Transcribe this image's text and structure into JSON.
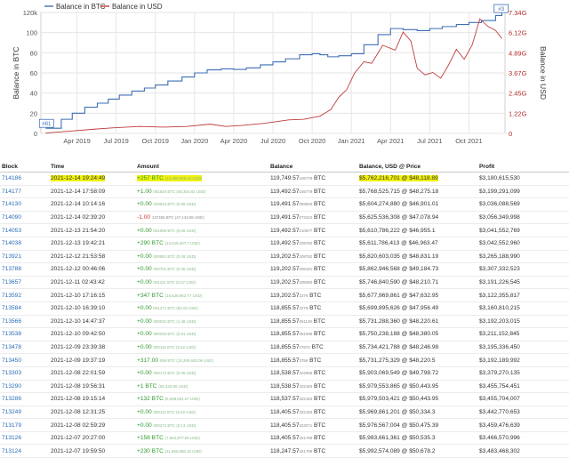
{
  "chart_data": {
    "type": "line",
    "legend": {
      "placement": "top-left",
      "entries": [
        {
          "name": "Balance in BTC",
          "color": "#3f6fb5"
        },
        {
          "name": "Balance in USD",
          "color": "#c03b3b"
        }
      ]
    },
    "ylabel": "Balance in BTC",
    "ylabel_right": "Balance in USD",
    "y_ticks": [
      "0",
      "20",
      "40",
      "60",
      "80",
      "100",
      "120k"
    ],
    "ylim": [
      0,
      120000
    ],
    "y2_ticks": [
      "0",
      "1.22G",
      "2.45G",
      "3.67G",
      "4.89G",
      "6.12G",
      "7.34G"
    ],
    "y2lim": [
      0,
      7340000000
    ],
    "x_ticks": [
      "Apr 2019",
      "Jul 2019",
      "Oct 2019",
      "Jan 2020",
      "Apr 2020",
      "Jul 2020",
      "Oct 2020",
      "Jan 2021",
      "Apr 2021",
      "Jul 2021",
      "Oct 2021"
    ],
    "grid": true,
    "markers": [
      {
        "label": "#81",
        "series": "Balance in BTC",
        "x": 2019.05,
        "y": 5100
      },
      {
        "label": "#3",
        "series": "Balance in BTC",
        "x": 2021.95,
        "y": 119000
      }
    ],
    "series": [
      {
        "name": "Balance in BTC",
        "x": [
          2019.05,
          2019.15,
          2019.22,
          2019.3,
          2019.38,
          2019.45,
          2019.52,
          2019.6,
          2019.68,
          2019.75,
          2019.83,
          2019.92,
          2020.0,
          2020.08,
          2020.17,
          2020.25,
          2020.33,
          2020.42,
          2020.5,
          2020.58,
          2020.67,
          2020.75,
          2020.8,
          2020.85,
          2020.92,
          2021.0,
          2021.08,
          2021.17,
          2021.25,
          2021.33,
          2021.42,
          2021.5,
          2021.58,
          2021.67,
          2021.75,
          2021.83,
          2021.92,
          2021.96
        ],
        "y": [
          5100,
          14000,
          20000,
          26000,
          30000,
          34000,
          38000,
          42000,
          45000,
          48000,
          52000,
          56000,
          60000,
          63000,
          64000,
          63500,
          65000,
          68000,
          71000,
          74000,
          78000,
          79000,
          78000,
          76000,
          77000,
          79000,
          88000,
          98000,
          104000,
          103000,
          102000,
          104000,
          106000,
          108000,
          110000,
          112000,
          117000,
          119700
        ]
      },
      {
        "name": "Balance in USD",
        "x": [
          2019.05,
          2019.2,
          2019.35,
          2019.5,
          2019.65,
          2019.8,
          2019.95,
          2020.1,
          2020.2,
          2020.3,
          2020.45,
          2020.6,
          2020.7,
          2020.8,
          2020.87,
          2020.92,
          2020.97,
          2021.02,
          2021.08,
          2021.13,
          2021.2,
          2021.28,
          2021.33,
          2021.38,
          2021.42,
          2021.47,
          2021.52,
          2021.57,
          2021.62,
          2021.67,
          2021.72,
          2021.77,
          2021.82,
          2021.87,
          2021.92,
          2021.96
        ],
        "y": [
          25000000,
          130000000,
          250000000,
          350000000,
          420000000,
          380000000,
          420000000,
          560000000,
          420000000,
          480000000,
          620000000,
          820000000,
          860000000,
          1050000000,
          1450000000,
          2200000000,
          2650000000,
          3650000000,
          4350000000,
          4250000000,
          5350000000,
          5050000000,
          6150000000,
          5600000000,
          3950000000,
          3550000000,
          3700000000,
          3350000000,
          4150000000,
          5100000000,
          4500000000,
          5350000000,
          6950000000,
          6500000000,
          6250000000,
          5760000000
        ]
      }
    ]
  },
  "table": {
    "headers": [
      "Block",
      "Time",
      "Amount",
      "Balance",
      "Balance, USD @ Price",
      "Profit"
    ],
    "rows": [
      {
        "block": "714186",
        "time": "2021-12-14 19:24:49",
        "amt_main": "+257 BTC",
        "amt_sub": "(12,366,805.24 USD)",
        "amt_sign": "pos",
        "bal_main": "119,749.57",
        "bal_sub": "155779",
        "bal_unit": " BTC",
        "usd": "$5,762,216,701 @ $48,118.89",
        "profit": "$3,180,615,530"
      },
      {
        "block": "714177",
        "time": "2021-12-14 17:58:09",
        "amt_main": "+1.00",
        "amt_sub": "061834 BTC (48,304.82 USD)",
        "amt_sign": "pos",
        "bal_main": "119,492.57",
        "bal_sub": "155779",
        "bal_unit": " BTC",
        "usd": "$5,768,525,715 @ $48,275.18",
        "profit": "$3,199,291,099"
      },
      {
        "block": "714130",
        "time": "2021-12-14 10:14:16",
        "amt_main": "+0.00",
        "amt_sub": "020523 BTC (0.95 USD)",
        "amt_sign": "pos",
        "bal_main": "119,491.57",
        "bal_sub": "093945",
        "bal_unit": " BTC",
        "usd": "$5,604,274,880 @ $46,901.01",
        "profit": "$3,036,088,569"
      },
      {
        "block": "714090",
        "time": "2021-12-14 02:39:20",
        "amt_main": "-1.00",
        "amt_sub": "137455 BTC (47,143.65 USD)",
        "amt_sign": "neg",
        "bal_main": "119,491.57",
        "bal_sub": "073422",
        "bal_unit": " BTC",
        "usd": "$5,625,536,308 @ $47,078.94",
        "profit": "$3,056,349,998"
      },
      {
        "block": "714053",
        "time": "2021-12-13 21:54:20",
        "amt_main": "+0.00",
        "amt_sub": "001095 BTC (0.05 USD)",
        "amt_sign": "pos",
        "bal_main": "119,492.57",
        "bal_sub": "210877",
        "bal_unit": " BTC",
        "usd": "$5,610,786,222 @ $46,955.1",
        "profit": "$3,041,552,769"
      },
      {
        "block": "714038",
        "time": "2021-12-13 19:42:21",
        "amt_main": "+290 BTC",
        "amt_sub": "(13,619,407.7 USD)",
        "amt_sign": "pos",
        "bal_main": "119,492.57",
        "bal_sub": "209782",
        "bal_unit": " BTC",
        "usd": "$5,611,786,413 @ $46,963.47",
        "profit": "$3,042,552,960"
      },
      {
        "block": "713921",
        "time": "2021-12-12 21:53:58",
        "amt_main": "+0.00",
        "amt_sub": "000591 BTC (0.28 USD)",
        "amt_sign": "pos",
        "bal_main": "119,202.57",
        "bal_sub": "209782",
        "bal_unit": " BTC",
        "usd": "$5,820,603,035 @ $48,831.19",
        "profit": "$3,265,188,990"
      },
      {
        "block": "713788",
        "time": "2021-12-12 00:46:06",
        "amt_main": "+0.00",
        "amt_sub": "000701 BTC (0.35 USD)",
        "amt_sign": "pos",
        "bal_main": "119,202.57",
        "bal_sub": "209191",
        "bal_unit": " BTC",
        "usd": "$5,862,946,568 @ $49,184.73",
        "profit": "$3,307,332,523"
      },
      {
        "block": "713657",
        "time": "2021-12-11 02:43:42",
        "amt_main": "+0.00",
        "amt_sub": "001211 BTC (0.57 USD)",
        "amt_sign": "pos",
        "bal_main": "119,202.57",
        "bal_sub": "208490",
        "bal_unit": " BTC",
        "usd": "$5,746,840,590 @ $48,210.71",
        "profit": "$3,191,226,545"
      },
      {
        "block": "713592",
        "time": "2021-12-10 17:16:15",
        "amt_main": "+347 BTC",
        "amt_sub": "(16,528,852.77 USD)",
        "amt_sign": "pos",
        "bal_main": "119,202.57",
        "bal_sub": "2279",
        "bal_unit": " BTC",
        "usd": "$5,677,969,861 @ $47,632.95",
        "profit": "$3,122,355,817"
      },
      {
        "block": "713584",
        "time": "2021-12-10 16:39:10",
        "amt_main": "+0.00",
        "amt_sub": "001271 BTC (60.04 USD)",
        "amt_sign": "pos",
        "bal_main": "118,855.57",
        "bal_sub": "2279",
        "bal_unit": " BTC",
        "usd": "$5,699,895,626 @ $47,956.49",
        "profit": "$3,160,810,215"
      },
      {
        "block": "713566",
        "time": "2021-12-10 14:47:37",
        "amt_main": "+0.00",
        "amt_sub": "000031 BTC (1.48 USD)",
        "amt_sign": "pos",
        "bal_main": "118,855.57",
        "bal_sub": "061129",
        "bal_unit": " BTC",
        "usd": "$5,731,288,360 @ $48,220.61",
        "profit": "$3,192,203,015"
      },
      {
        "block": "713538",
        "time": "2021-12-10 09:42:50",
        "amt_main": "+0.00",
        "amt_sub": "000033 BTC (0.91 USD)",
        "amt_sign": "pos",
        "bal_main": "118,855.57",
        "bal_sub": "061098",
        "bal_unit": " BTC",
        "usd": "$5,750,238,188 @ $48,380.05",
        "profit": "$3,211,152,845"
      },
      {
        "block": "713478",
        "time": "2021-12-09 23:39:38",
        "amt_main": "+0.00",
        "amt_sub": "000115 BTC (5.52 USD)",
        "amt_sign": "pos",
        "bal_main": "118,855.57",
        "bal_sub": "27874",
        "bal_unit": " BTC",
        "usd": "$5,734,421,788 @ $48,246.98",
        "profit": "$3,195,336,450"
      },
      {
        "block": "713450",
        "time": "2021-12-09 19:37:19",
        "amt_main": "+317.00",
        "amt_sub": "058 BTC (15,285,603.06 USD)",
        "amt_sign": "pos",
        "bal_main": "118,855.57",
        "bal_sub": "3759",
        "bal_unit": " BTC",
        "usd": "$5,731,275,329 @ $48,220.5",
        "profit": "$3,192,189,992"
      },
      {
        "block": "713303",
        "time": "2021-12-08 22:01:59",
        "amt_main": "+0.00",
        "amt_sub": "000172 BTC (0.09 USD)",
        "amt_sign": "pos",
        "bal_main": "118,538.57",
        "bal_sub": "322955",
        "bal_unit": " BTC",
        "usd": "$5,903,069,549 @ $49,798.72",
        "profit": "$3,379,270,135"
      },
      {
        "block": "713290",
        "time": "2021-12-08 19:56:31",
        "amt_main": "+1 BTC",
        "amt_sub": "(50,443.95 USD)",
        "amt_sign": "pos",
        "bal_main": "118,538.57",
        "bal_sub": "322183",
        "bal_unit": " BTC",
        "usd": "$5,979,553,865 @ $50,443.95",
        "profit": "$3,455,754,451"
      },
      {
        "block": "713286",
        "time": "2021-12-08 19:15:14",
        "amt_main": "+132 BTC",
        "amt_sub": "(6,658,601.57 USD)",
        "amt_sign": "pos",
        "bal_main": "118,537.57",
        "bal_sub": "322183",
        "bal_unit": " BTC",
        "usd": "$5,979,503,421 @ $50,443.95",
        "profit": "$3,455,704,007"
      },
      {
        "block": "713249",
        "time": "2021-12-08 12:31:25",
        "amt_main": "+0.00",
        "amt_sub": "000112 BTC (5.62 USD)",
        "amt_sign": "pos",
        "bal_main": "118,405.57",
        "bal_sub": "322183",
        "bal_unit": " BTC",
        "usd": "$5,969,861,201 @ $50,334.3",
        "profit": "$3,442,770,653"
      },
      {
        "block": "713179",
        "time": "2021-12-08 02:59:29",
        "amt_main": "+0.00",
        "amt_sub": "000272 BTC (0.13 USD)",
        "amt_sign": "pos",
        "bal_main": "118,405.57",
        "bal_sub": "322071",
        "bal_unit": " BTC",
        "usd": "$5,976,567,004 @ $50,475.39",
        "profit": "$3,459,476,639"
      },
      {
        "block": "713126",
        "time": "2021-12-07 20:27:00",
        "amt_main": "+158 BTC",
        "amt_sub": "(7,964,977.65 USD)",
        "amt_sign": "pos",
        "bal_main": "118,405.57",
        "bal_sub": "321799",
        "bal_unit": " BTC",
        "usd": "$5,983,661,361 @ $50,535.3",
        "profit": "$3,466,570,996"
      },
      {
        "block": "713124",
        "time": "2021-12-07 19:59:50",
        "amt_main": "+230 BTC",
        "amt_sub": "(11,666,868.15 USD)",
        "amt_sign": "pos",
        "bal_main": "118,247.57",
        "bal_sub": "321799",
        "bal_unit": " BTC",
        "usd": "$5,992,574,089 @ $50,678.2",
        "profit": "$3,483,468,302"
      }
    ],
    "highlight_row": 0
  },
  "colors": {
    "btc_line": "#3f6fb5",
    "usd_line": "#c03b3b",
    "grid": "#e6e6e6",
    "highlight": "#f2f20c",
    "block_link": "#2a6db6",
    "positive": "#2f9a2f",
    "negative": "#c93b3b"
  }
}
